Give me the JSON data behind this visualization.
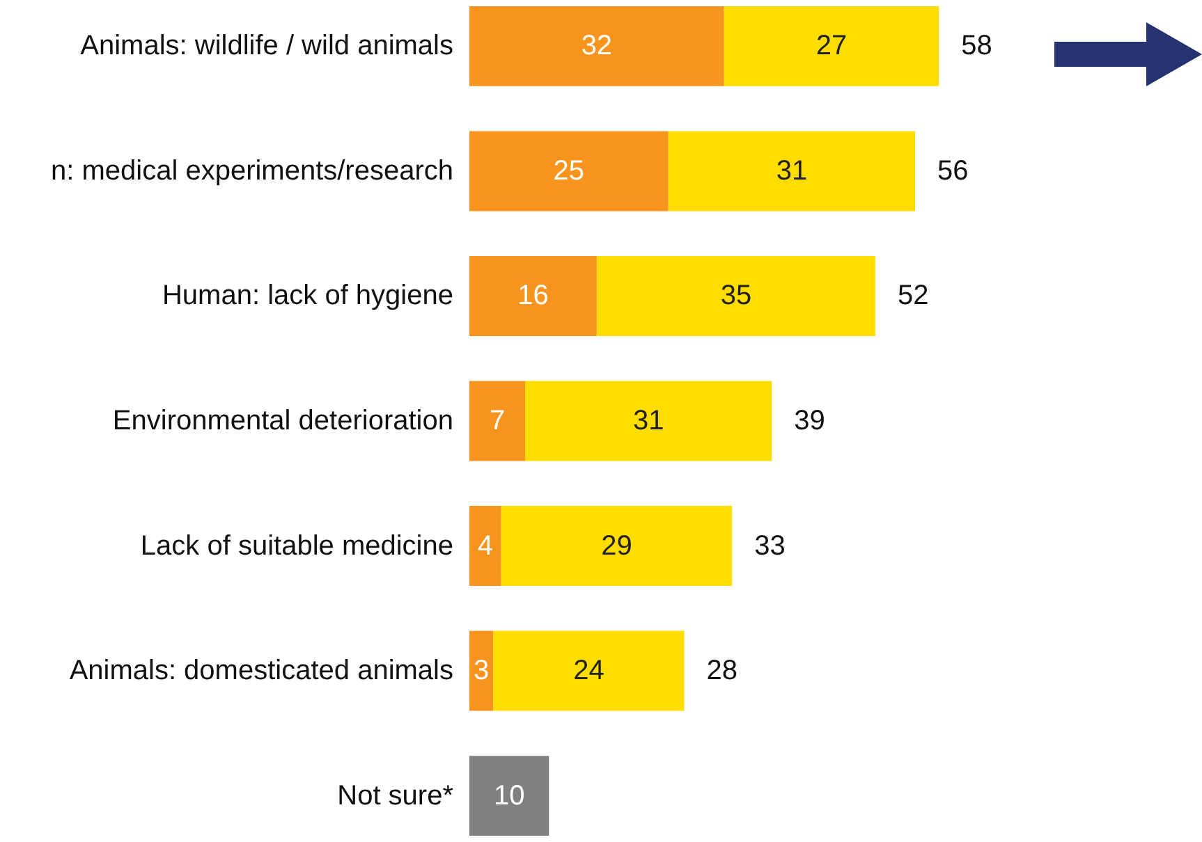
{
  "chart_data": {
    "type": "bar",
    "orientation": "horizontal",
    "stacked": true,
    "data_labels": true,
    "categories": [
      "Animals: wildlife / wild animals",
      "n: medical experiments/research",
      "Human: lack of hygiene",
      "Environmental deterioration",
      "Lack of suitable medicine",
      "Animals: domesticated animals",
      "Not sure*"
    ],
    "series": [
      {
        "color": "#f7941d",
        "values": [
          32,
          25,
          16,
          7,
          4,
          3,
          null
        ]
      },
      {
        "color": "#ffdd00",
        "values": [
          27,
          31,
          35,
          31,
          29,
          24,
          null
        ]
      },
      {
        "color": "#808080",
        "values": [
          null,
          null,
          null,
          null,
          null,
          null,
          10
        ]
      }
    ],
    "totals": [
      "58",
      "56",
      "52",
      "39",
      "33",
      "28",
      null
    ]
  }
}
